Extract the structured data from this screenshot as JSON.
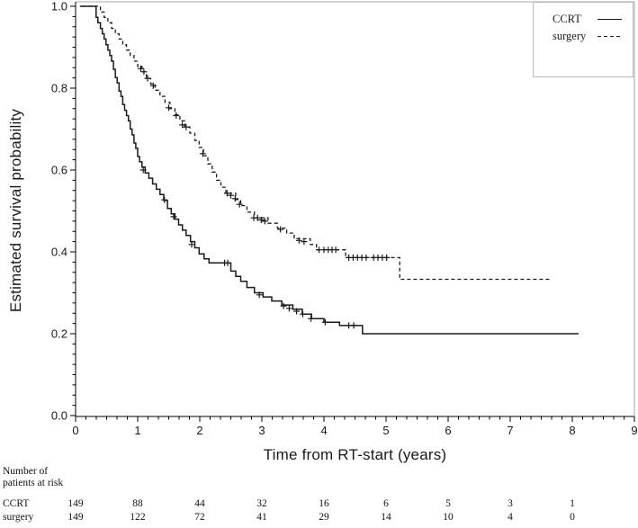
{
  "figure": {
    "background": "#ffffff",
    "frame_color": "#b9b9b9",
    "axis_color": "#000000",
    "curve_color": "#1a1a1a",
    "text_color": "#1a1a1a"
  },
  "chart_data": {
    "type": "line",
    "subtype": "kaplan-meier-step",
    "title": "",
    "xlabel": "Time from RT-start (years)",
    "ylabel": "Estimated survival probability",
    "xlim": [
      0,
      9
    ],
    "ylim": [
      0.0,
      1.0
    ],
    "grid": false,
    "x_major_ticks": [
      0,
      1,
      2,
      3,
      4,
      5,
      6,
      7,
      8,
      9
    ],
    "x_tick_labels": [
      "0",
      "1",
      "2",
      "3",
      "4",
      "5",
      "6",
      "7",
      "8",
      "9"
    ],
    "x_minor_step": 0.166667,
    "y_major_ticks": [
      0.0,
      0.2,
      0.4,
      0.6,
      0.8,
      1.0
    ],
    "y_tick_labels": [
      "0.0",
      "0.2",
      "0.4",
      "0.6",
      "0.8",
      "1.0"
    ],
    "y_minor_step": 0.025,
    "legend": {
      "position": "top-right"
    },
    "series": [
      {
        "name": "CCRT",
        "line_style": "solid",
        "steps": [
          [
            0.07,
            1.0
          ],
          [
            0.29,
            1.0
          ],
          [
            0.33,
            0.973
          ],
          [
            0.36,
            0.96
          ],
          [
            0.4,
            0.946
          ],
          [
            0.43,
            0.933
          ],
          [
            0.46,
            0.92
          ],
          [
            0.49,
            0.906
          ],
          [
            0.52,
            0.893
          ],
          [
            0.55,
            0.88
          ],
          [
            0.58,
            0.866
          ],
          [
            0.61,
            0.846
          ],
          [
            0.64,
            0.826
          ],
          [
            0.67,
            0.813
          ],
          [
            0.7,
            0.793
          ],
          [
            0.73,
            0.78
          ],
          [
            0.76,
            0.76
          ],
          [
            0.79,
            0.746
          ],
          [
            0.82,
            0.733
          ],
          [
            0.85,
            0.72
          ],
          [
            0.88,
            0.7
          ],
          [
            0.91,
            0.686
          ],
          [
            0.94,
            0.666
          ],
          [
            0.97,
            0.653
          ],
          [
            1.0,
            0.633
          ],
          [
            1.03,
            0.62
          ],
          [
            1.07,
            0.607
          ],
          [
            1.12,
            0.593
          ],
          [
            1.18,
            0.58
          ],
          [
            1.24,
            0.566
          ],
          [
            1.3,
            0.553
          ],
          [
            1.36,
            0.54
          ],
          [
            1.42,
            0.526
          ],
          [
            1.48,
            0.506
          ],
          [
            1.54,
            0.493
          ],
          [
            1.6,
            0.48
          ],
          [
            1.66,
            0.466
          ],
          [
            1.72,
            0.453
          ],
          [
            1.78,
            0.44
          ],
          [
            1.85,
            0.425
          ],
          [
            1.92,
            0.41
          ],
          [
            1.99,
            0.395
          ],
          [
            2.07,
            0.383
          ],
          [
            2.15,
            0.373
          ],
          [
            2.5,
            0.353
          ],
          [
            2.58,
            0.34
          ],
          [
            2.66,
            0.328
          ],
          [
            2.76,
            0.313
          ],
          [
            2.88,
            0.3
          ],
          [
            3.02,
            0.29
          ],
          [
            3.16,
            0.28
          ],
          [
            3.32,
            0.27
          ],
          [
            3.5,
            0.26
          ],
          [
            3.65,
            0.248
          ],
          [
            3.8,
            0.237
          ],
          [
            4.0,
            0.228
          ],
          [
            4.25,
            0.22
          ],
          [
            4.62,
            0.2
          ],
          [
            8.1,
            0.2
          ]
        ],
        "censor_marks": [
          [
            1.09,
            0.6
          ],
          [
            1.43,
            0.527
          ],
          [
            1.58,
            0.486
          ],
          [
            1.87,
            0.418
          ],
          [
            2.4,
            0.373
          ],
          [
            2.45,
            0.373
          ],
          [
            2.96,
            0.295
          ],
          [
            3.35,
            0.268
          ],
          [
            3.44,
            0.262
          ],
          [
            3.56,
            0.255
          ],
          [
            3.66,
            0.248
          ],
          [
            3.79,
            0.237
          ],
          [
            4.02,
            0.228
          ],
          [
            4.4,
            0.22
          ],
          [
            4.48,
            0.22
          ]
        ]
      },
      {
        "name": "surgery",
        "line_style": "dashed",
        "steps": [
          [
            0.1,
            1.0
          ],
          [
            0.35,
            1.0
          ],
          [
            0.4,
            0.986
          ],
          [
            0.46,
            0.973
          ],
          [
            0.52,
            0.96
          ],
          [
            0.58,
            0.946
          ],
          [
            0.64,
            0.933
          ],
          [
            0.7,
            0.92
          ],
          [
            0.76,
            0.906
          ],
          [
            0.82,
            0.893
          ],
          [
            0.88,
            0.88
          ],
          [
            0.94,
            0.866
          ],
          [
            1.0,
            0.853
          ],
          [
            1.07,
            0.84
          ],
          [
            1.14,
            0.824
          ],
          [
            1.21,
            0.81
          ],
          [
            1.28,
            0.795
          ],
          [
            1.36,
            0.78
          ],
          [
            1.44,
            0.765
          ],
          [
            1.52,
            0.75
          ],
          [
            1.6,
            0.735
          ],
          [
            1.68,
            0.72
          ],
          [
            1.76,
            0.705
          ],
          [
            1.84,
            0.69
          ],
          [
            1.92,
            0.672
          ],
          [
            1.99,
            0.655
          ],
          [
            2.06,
            0.635
          ],
          [
            2.13,
            0.615
          ],
          [
            2.2,
            0.595
          ],
          [
            2.27,
            0.575
          ],
          [
            2.34,
            0.558
          ],
          [
            2.42,
            0.543
          ],
          [
            2.58,
            0.528
          ],
          [
            2.66,
            0.513
          ],
          [
            2.76,
            0.497
          ],
          [
            2.88,
            0.483
          ],
          [
            3.1,
            0.47
          ],
          [
            3.25,
            0.458
          ],
          [
            3.4,
            0.446
          ],
          [
            3.52,
            0.432
          ],
          [
            3.78,
            0.418
          ],
          [
            3.88,
            0.405
          ],
          [
            4.35,
            0.386
          ],
          [
            5.22,
            0.333
          ],
          [
            7.65,
            0.333
          ]
        ],
        "censor_marks": [
          [
            1.05,
            0.848
          ],
          [
            1.1,
            0.84
          ],
          [
            1.16,
            0.824
          ],
          [
            1.25,
            0.806
          ],
          [
            1.5,
            0.752
          ],
          [
            1.62,
            0.733
          ],
          [
            1.72,
            0.71
          ],
          [
            1.78,
            0.705
          ],
          [
            2.05,
            0.64
          ],
          [
            2.44,
            0.543
          ],
          [
            2.5,
            0.538
          ],
          [
            2.57,
            0.53
          ],
          [
            2.64,
            0.516
          ],
          [
            2.87,
            0.483
          ],
          [
            2.93,
            0.483
          ],
          [
            2.99,
            0.478
          ],
          [
            3.05,
            0.475
          ],
          [
            3.3,
            0.455
          ],
          [
            3.6,
            0.428
          ],
          [
            3.68,
            0.425
          ],
          [
            3.92,
            0.405
          ],
          [
            4.0,
            0.405
          ],
          [
            4.07,
            0.405
          ],
          [
            4.13,
            0.405
          ],
          [
            4.19,
            0.405
          ],
          [
            4.4,
            0.386
          ],
          [
            4.47,
            0.386
          ],
          [
            4.54,
            0.386
          ],
          [
            4.61,
            0.386
          ],
          [
            4.68,
            0.386
          ],
          [
            4.8,
            0.386
          ],
          [
            4.87,
            0.386
          ],
          [
            4.94,
            0.386
          ],
          [
            5.01,
            0.386
          ]
        ]
      }
    ]
  },
  "risk_table": {
    "header_line1": "Number of",
    "header_line2": "patients at risk",
    "times": [
      0,
      1,
      2,
      3,
      4,
      5,
      6,
      7,
      8
    ],
    "rows": [
      {
        "label": "CCRT",
        "counts": [
          "149",
          "88",
          "44",
          "32",
          "16",
          "6",
          "5",
          "3",
          "1"
        ]
      },
      {
        "label": "surgery",
        "counts": [
          "149",
          "122",
          "72",
          "41",
          "29",
          "14",
          "10",
          "4",
          "0"
        ]
      }
    ]
  }
}
